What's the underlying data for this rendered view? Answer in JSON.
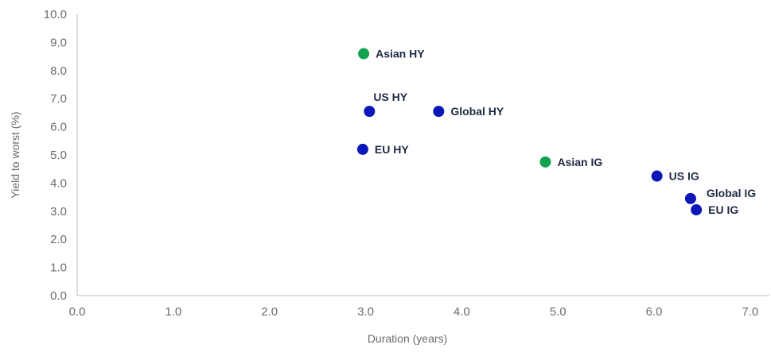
{
  "chart_data": {
    "type": "scatter",
    "title": "",
    "xlabel": "Duration (years)",
    "ylabel": "Yield to worst (%)",
    "xlim": [
      0,
      7.2
    ],
    "ylim": [
      0,
      10
    ],
    "x_ticks": [
      "0.0",
      "1.0",
      "2.0",
      "3.0",
      "4.0",
      "5.0",
      "6.0",
      "7.0"
    ],
    "y_ticks": [
      "0.0",
      "1.0",
      "2.0",
      "3.0",
      "4.0",
      "5.0",
      "6.0",
      "7.0",
      "8.0",
      "9.0",
      "10.0"
    ],
    "grid": false,
    "colors": {
      "asian": "#12a150",
      "other": "#0b17b8",
      "axis": "#bfbfbf"
    },
    "points": [
      {
        "label": "Asian HY",
        "x": 2.98,
        "y": 8.6,
        "color": "#12a150",
        "label_pos": "right"
      },
      {
        "label": "US HY",
        "x": 3.04,
        "y": 6.55,
        "color": "#0b17b8",
        "label_pos": "above"
      },
      {
        "label": "Global HY",
        "x": 3.76,
        "y": 6.55,
        "color": "#0b17b8",
        "label_pos": "right"
      },
      {
        "label": "EU HY",
        "x": 2.97,
        "y": 5.2,
        "color": "#0b17b8",
        "label_pos": "right"
      },
      {
        "label": "Asian IG",
        "x": 4.87,
        "y": 4.75,
        "color": "#12a150",
        "label_pos": "right"
      },
      {
        "label": "US IG",
        "x": 6.03,
        "y": 4.25,
        "color": "#0b17b8",
        "label_pos": "right"
      },
      {
        "label": "Global IG",
        "x": 6.38,
        "y": 3.45,
        "color": "#0b17b8",
        "label_pos": "upper-right"
      },
      {
        "label": "EU IG",
        "x": 6.44,
        "y": 3.05,
        "color": "#0b17b8",
        "label_pos": "right"
      }
    ]
  }
}
